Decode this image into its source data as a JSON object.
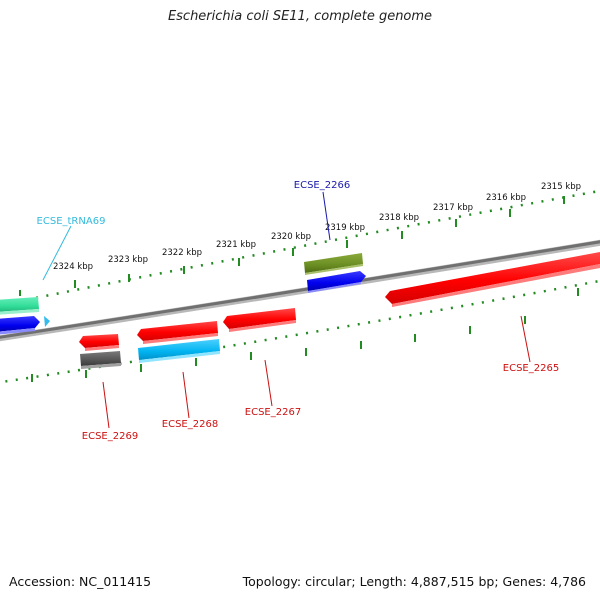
{
  "title": "Escherichia coli SE11, complete genome",
  "footer": {
    "accession": "Accession: NC_011415",
    "summary": "Topology: circular; Length: 4,887,515 bp; Genes: 4,786"
  },
  "scale_ticks": [
    {
      "label": "2315 kbp"
    },
    {
      "label": "2316 kbp"
    },
    {
      "label": "2317 kbp"
    },
    {
      "label": "2318 kbp"
    },
    {
      "label": "2319 kbp"
    },
    {
      "label": "2320 kbp"
    },
    {
      "label": "2321 kbp"
    },
    {
      "label": "2322 kbp"
    },
    {
      "label": "2323 kbp"
    },
    {
      "label": "2324 kbp"
    }
  ],
  "genes": [
    {
      "name": "ECSE_tRNA69",
      "color": "#33bbdd",
      "strand": "plus"
    },
    {
      "name": "ECSE_2266",
      "color": "#1a1aaa",
      "strand": "plus"
    },
    {
      "name": "ECSE_2265",
      "color": "#cc1111",
      "strand": "minus"
    },
    {
      "name": "ECSE_2267",
      "color": "#cc1111",
      "strand": "minus"
    },
    {
      "name": "ECSE_2268",
      "color": "#cc1111",
      "strand": "minus"
    },
    {
      "name": "ECSE_2269",
      "color": "#cc1111",
      "strand": "minus"
    }
  ],
  "colors": {
    "backbone": "#808080",
    "tick": "#228B22",
    "cds_red": "#ff0000",
    "cds_blue": "#0000ee",
    "cds_cyan": "#00b4f0",
    "cds_green": "#6b8e23",
    "cds_grey": "#555555",
    "trna_teal": "#33dd99"
  }
}
